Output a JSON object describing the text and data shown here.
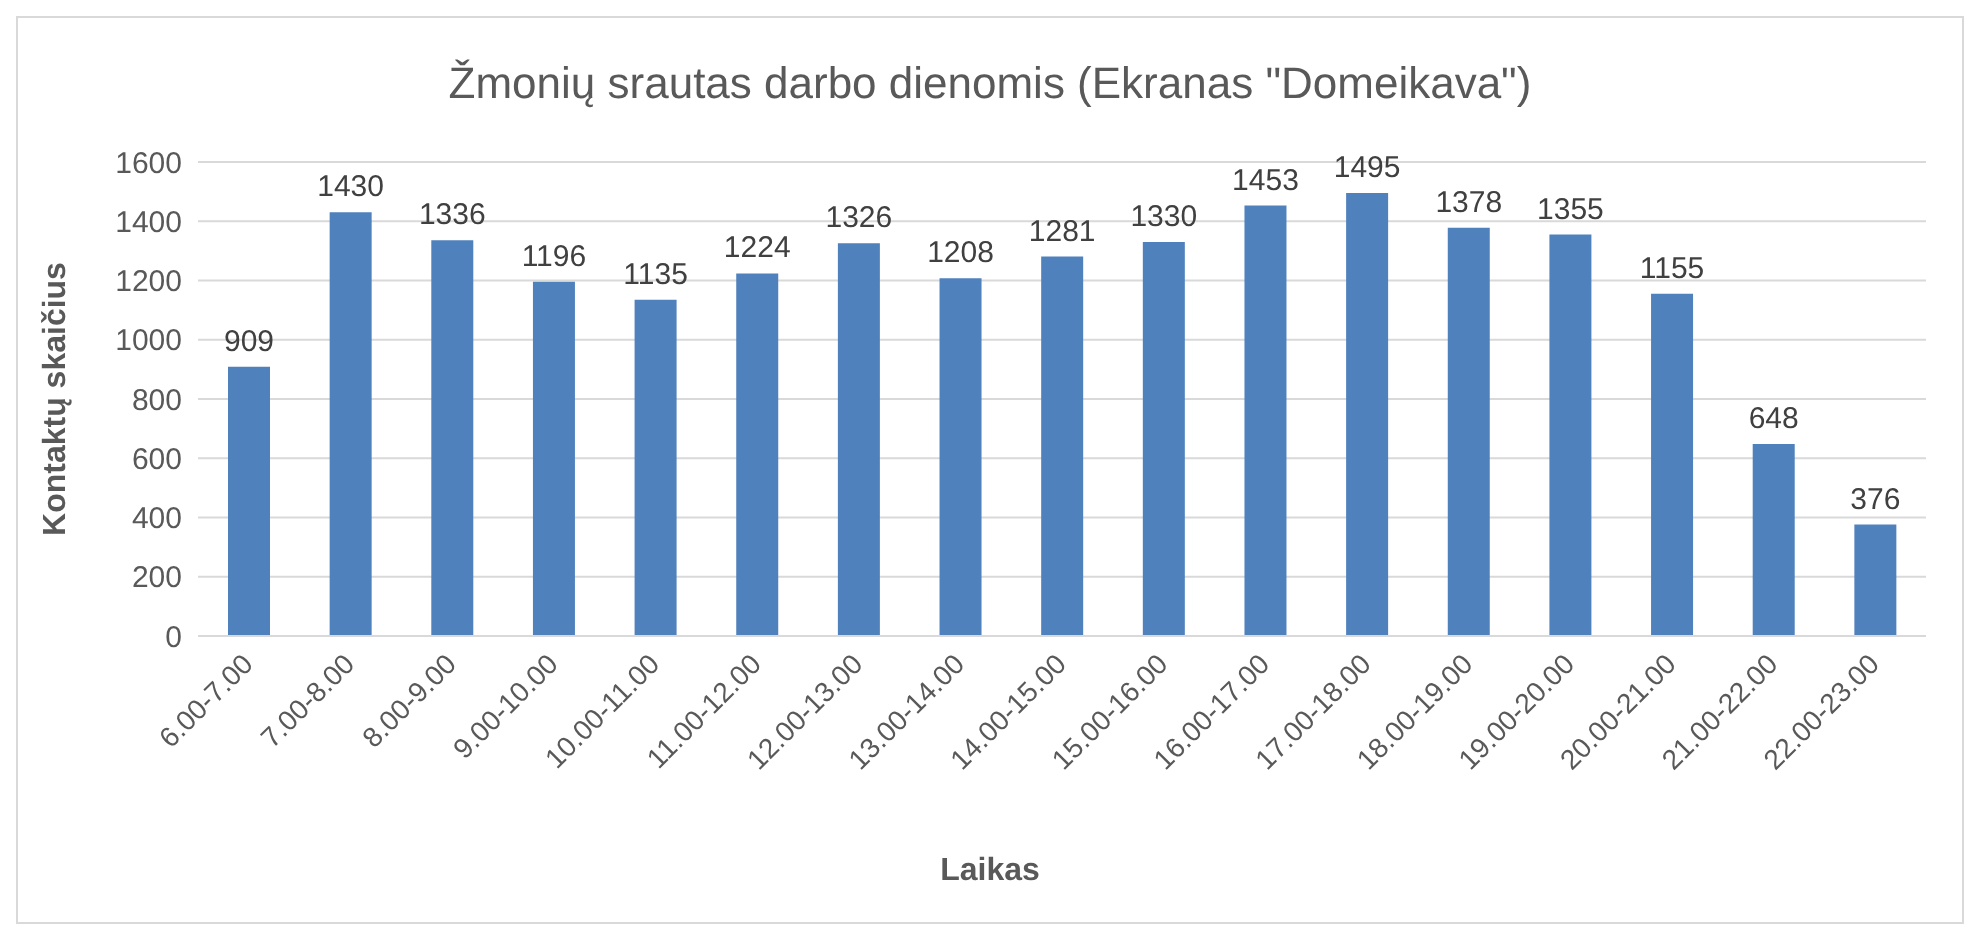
{
  "chart_data": {
    "type": "bar",
    "title": "Žmonių srautas darbo dienomis (Ekranas \"Domeikava\")",
    "xlabel": "Laikas",
    "ylabel": "Kontaktų skaičius",
    "categories": [
      "6.00-7.00",
      "7.00-8.00",
      "8.00-9.00",
      "9.00-10.00",
      "10.00-11.00",
      "11.00-12.00",
      "12.00-13.00",
      "13.00-14.00",
      "14.00-15.00",
      "15.00-16.00",
      "16.00-17.00",
      "17.00-18.00",
      "18.00-19.00",
      "19.00-20.00",
      "20.00-21.00",
      "21.00-22.00",
      "22.00-23.00"
    ],
    "values": [
      909,
      1430,
      1336,
      1196,
      1135,
      1224,
      1326,
      1208,
      1281,
      1330,
      1453,
      1495,
      1378,
      1355,
      1155,
      648,
      376
    ],
    "color": "#4f81bd",
    "ylim": [
      0,
      1600
    ],
    "yticks": [
      0,
      200,
      400,
      600,
      800,
      1000,
      1200,
      1400,
      1600
    ],
    "grid": "y",
    "data_labels": true,
    "legend": false
  }
}
